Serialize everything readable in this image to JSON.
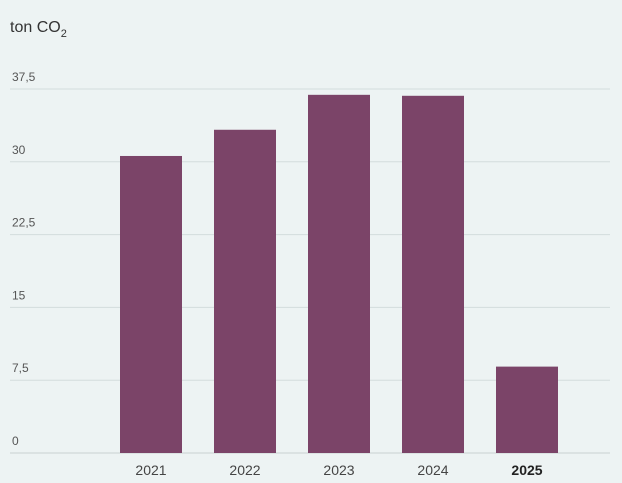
{
  "chart_data": {
    "type": "bar",
    "ylabel": "ton CO",
    "ylabel_sub": "2",
    "categories": [
      "2021",
      "2022",
      "2023",
      "2024",
      "2025"
    ],
    "highlight_category": "2025",
    "values": [
      30.6,
      33.3,
      36.9,
      36.8,
      8.9
    ],
    "ylim": [
      0,
      37.5
    ],
    "yticks": [
      0,
      7.5,
      15,
      22.5,
      30,
      37.5
    ],
    "ytick_labels": [
      "0",
      "7,5",
      "15",
      "22,5",
      "30",
      "37,5"
    ],
    "grid": true,
    "bar_color": "#7b4468",
    "grid_color": "#d3dcdc"
  }
}
